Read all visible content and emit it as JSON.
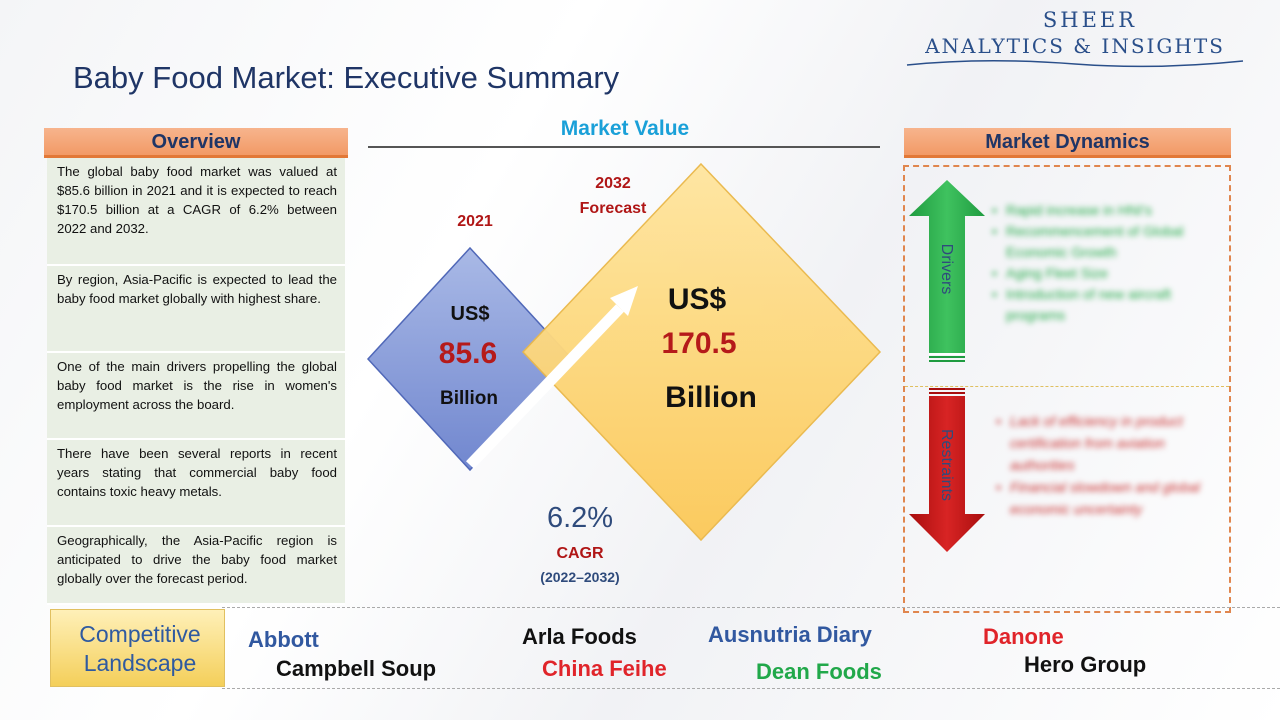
{
  "brand": {
    "line1": "SHEER",
    "line2": "ANALYTICS & INSIGHTS"
  },
  "page_title": "Baby Food Market: Executive Summary",
  "overview": {
    "header": "Overview",
    "items": [
      "The global baby food market was valued at $85.6 billion in 2021 and it is expected to reach $170.5 billion at a CAGR of 6.2% between 2022 and 2032.",
      "By region, Asia-Pacific is expected to lead the baby food market globally with highest share.",
      "One of the main drivers propelling the global baby food market is the rise in women's employment across the board.",
      "There have been several reports in recent years stating that commercial baby food contains toxic heavy metals.",
      "Geographically, the Asia-Pacific region is anticipated to drive the baby food market globally over the forecast period."
    ]
  },
  "market_value": {
    "title": "Market Value",
    "start": {
      "year": "2021",
      "currency": "US$",
      "value": "85.6",
      "unit": "Billion"
    },
    "forecast": {
      "year_line1": "2032",
      "year_line2": "Forecast",
      "currency": "US$",
      "value": "170.5",
      "unit": "Billion"
    },
    "cagr": {
      "value": "6.2%",
      "label": "CAGR",
      "period": "(2022–2032)"
    }
  },
  "market_dynamics": {
    "header": "Market Dynamics",
    "drivers_label": "Drivers",
    "restraints_label": "Restraints",
    "drivers": [
      "Rapid increase in HNI's",
      "Recommencement of Global Economic Growth",
      "Aging Fleet Size",
      "Introduction of new aircraft programs"
    ],
    "restraints": [
      "Lack of efficiency in product certification from aviation authorities",
      "Financial slowdown and global economic uncertainty"
    ]
  },
  "competitive_landscape": {
    "label_line1": "Competitive",
    "label_line2": "Landscape",
    "companies": [
      {
        "name": "Abbott",
        "color": "#3158a0"
      },
      {
        "name": "Campbell Soup",
        "color": "#111111"
      },
      {
        "name": "Arla Foods",
        "color": "#111111"
      },
      {
        "name": "China Feihe",
        "color": "#e0242a"
      },
      {
        "name": "Ausnutria Diary",
        "color": "#3158a0"
      },
      {
        "name": "Dean Foods",
        "color": "#21a84a"
      },
      {
        "name": "Danone",
        "color": "#e0242a"
      },
      {
        "name": "Hero Group",
        "color": "#111111"
      }
    ]
  },
  "colors": {
    "title_navy": "#1f3566",
    "accent_blue": "#1aa0d8",
    "value_red": "#b51a1a",
    "header_orange": "#f29a66",
    "drivers_green": "#21a84a",
    "restraints_red": "#c01818"
  }
}
